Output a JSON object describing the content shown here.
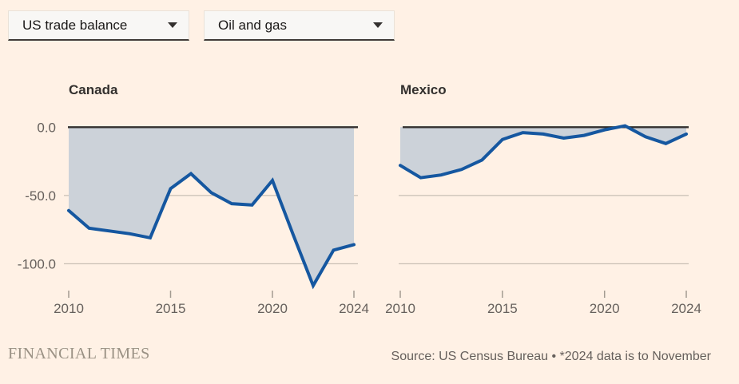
{
  "page": {
    "background": "#FFF1E5"
  },
  "controls": {
    "metric_dropdown": {
      "value": "US trade balance",
      "icon": "chevron-down-icon"
    },
    "category_dropdown": {
      "value": "Oil and gas",
      "icon": "chevron-down-icon"
    }
  },
  "chart_data": [
    {
      "type": "area",
      "title": "Canada",
      "x": [
        2010,
        2011,
        2012,
        2013,
        2014,
        2015,
        2016,
        2017,
        2018,
        2019,
        2020,
        2021,
        2022,
        2023,
        2024
      ],
      "values": [
        -61,
        -74,
        -76,
        -78,
        -81,
        -45,
        -34,
        -48,
        -56,
        -57,
        -39,
        -78,
        -116,
        -90,
        -86
      ],
      "x_ticks": [
        2010,
        2015,
        2020,
        2024
      ],
      "x_tick_labels": [
        "2010",
        "2015",
        "2020",
        "2024"
      ],
      "y_ticks": [
        {
          "label": "0.0",
          "value": 0
        },
        {
          "label": "-50.0",
          "value": -50
        },
        {
          "label": "-100.0",
          "value": -100
        }
      ],
      "y_grid_values": [
        -50,
        -100
      ],
      "show_y_labels": true,
      "ylim": [
        -120,
        5
      ],
      "grid": "horizontal",
      "legend": "none",
      "line_color": "#1557A0",
      "fill_color": "#CCD2D9",
      "zero_line_color": "#33302E"
    },
    {
      "type": "area",
      "title": "Mexico",
      "x": [
        2010,
        2011,
        2012,
        2013,
        2014,
        2015,
        2016,
        2017,
        2018,
        2019,
        2020,
        2021,
        2022,
        2023,
        2024
      ],
      "values": [
        -28,
        -37,
        -35,
        -31,
        -24,
        -9,
        -4,
        -5,
        -8,
        -6,
        -2,
        1,
        -7,
        -12,
        -5
      ],
      "x_ticks": [
        2010,
        2015,
        2020,
        2024
      ],
      "x_tick_labels": [
        "2010",
        "2015",
        "2020",
        "2024"
      ],
      "y_grid_values": [
        -50,
        -100
      ],
      "show_y_labels": false,
      "ylim": [
        -120,
        5
      ],
      "grid": "horizontal",
      "legend": "none",
      "line_color": "#1557A0",
      "fill_color": "#CCD2D9",
      "zero_line_color": "#33302E"
    }
  ],
  "footer": {
    "brand": "FINANCIAL TIMES",
    "source": "Source: US Census Bureau • *2024 data is to November"
  }
}
